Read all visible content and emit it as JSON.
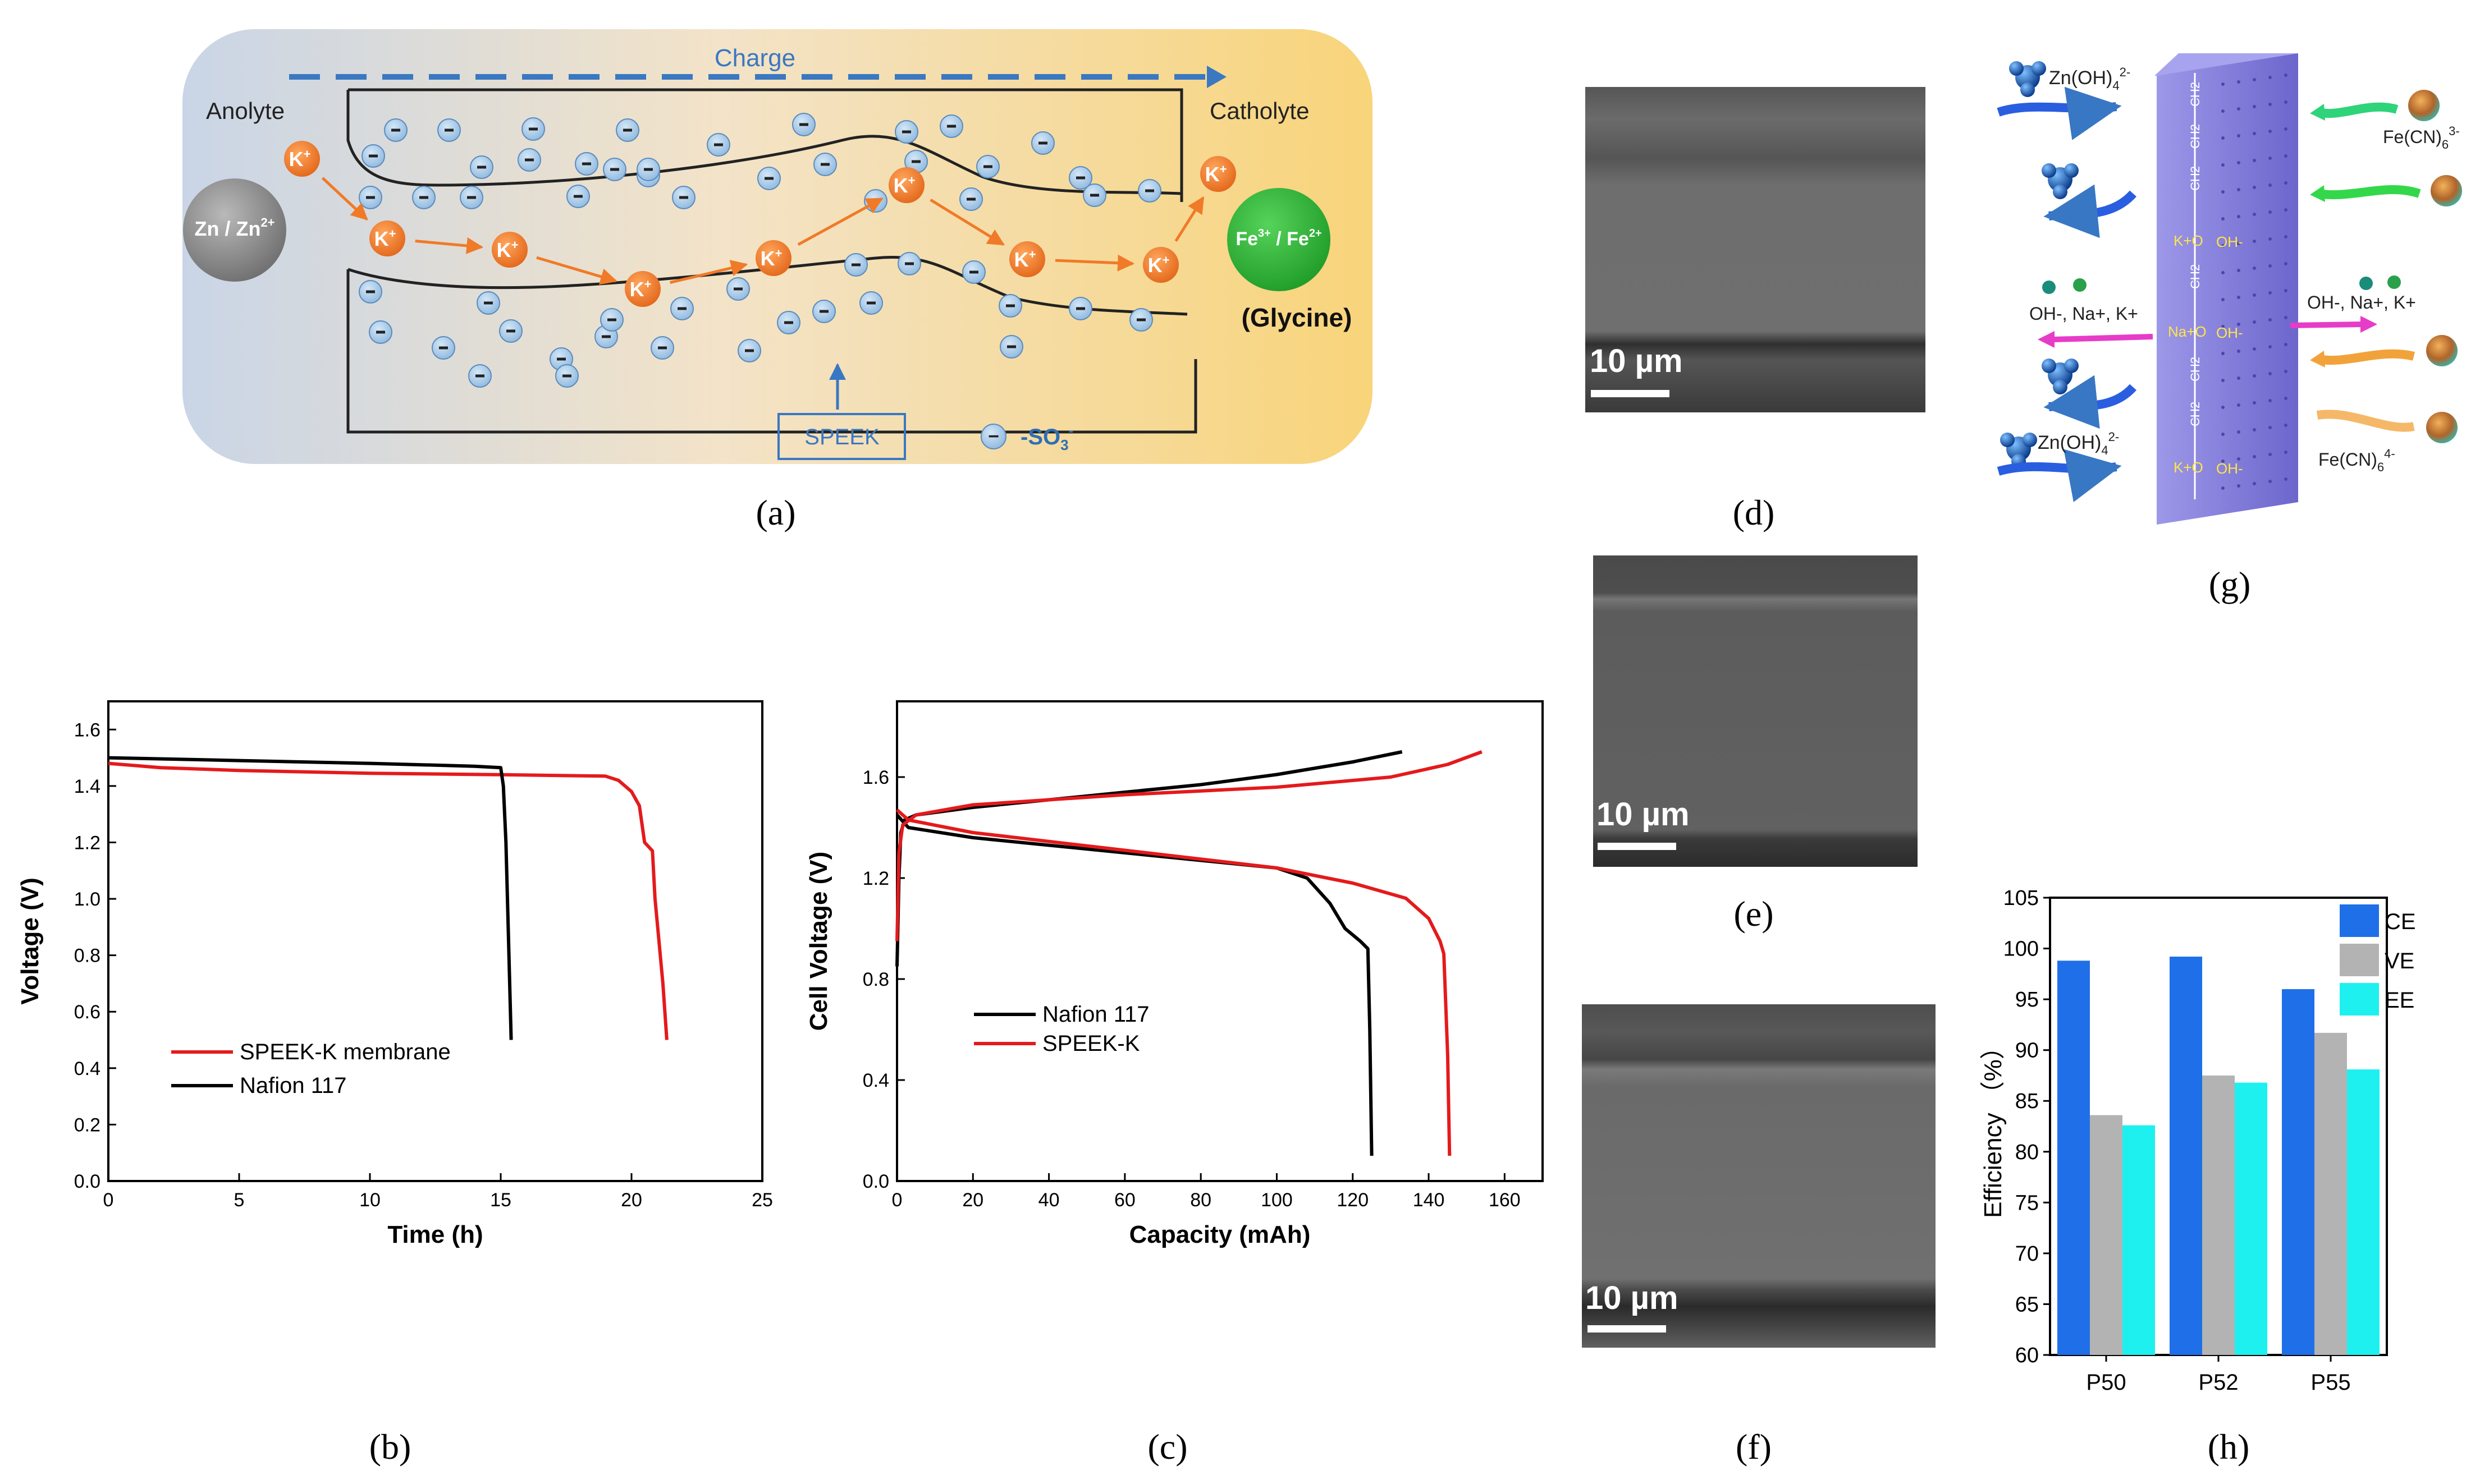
{
  "panels": {
    "a": "(a)",
    "b": "(b)",
    "c": "(c)",
    "d": "(d)",
    "e": "(e)",
    "f": "(f)",
    "g": "(g)",
    "h": "(h)"
  },
  "schematic": {
    "charge": "Charge",
    "anolyte": "Anolyte",
    "catholyte": "Catholyte",
    "zn": "Zn / Zn",
    "zn_sup": "2+",
    "fe": "Fe",
    "fe_sup1": "3+",
    "fe_mid": " / Fe",
    "fe_sup2": "2+",
    "glycine": "(Glycine)",
    "k": "K",
    "k_sup": "+",
    "speek": "SPEEK",
    "so3_prefix": "-SO",
    "so3_sub": "3",
    "so3_sup": "-",
    "minus": "−"
  },
  "sem": {
    "scale_label": "10 µm"
  },
  "membrane": {
    "zn_oh4": "Zn(OH)",
    "zn_sub": "4",
    "zn_sup": "2-",
    "fecn": "Fe(CN)",
    "fecn_sub": "6",
    "fecn3_sup": "3-",
    "fecn4_sup": "4-",
    "ions_left": "OH-, Na+, K+",
    "ions_right": "OH-, Na+, K+",
    "k_o": "K+O",
    "na_o": "Na+O",
    "oh": "OH-",
    "chain_ch2": "CH2"
  },
  "colors": {
    "red_series": "#e41a1c",
    "black_series": "#000000",
    "ce": "#1f6fe8",
    "ve": "#b3b3b3",
    "ee": "#1ef0f0",
    "k_ion": "#f07a28",
    "so3": "#a9cbe9",
    "membrane": "#7e78d8"
  },
  "chart_data": [
    {
      "id": "b",
      "type": "line",
      "xlabel": "Time (h)",
      "ylabel": "Voltage (V)",
      "xlim": [
        0,
        25
      ],
      "ylim": [
        0,
        1.7
      ],
      "xticks": [
        0,
        5,
        10,
        15,
        20,
        25
      ],
      "yticks": [
        0.0,
        0.2,
        0.4,
        0.6,
        0.8,
        1.0,
        1.2,
        1.4,
        1.6
      ],
      "legend": [
        "SPEEK-K membrane",
        "Nafion 117"
      ],
      "series": [
        {
          "name": "SPEEK-K membrane",
          "color": "#e41a1c",
          "x": [
            0,
            2,
            5,
            10,
            15,
            19,
            19.5,
            20.0,
            20.3,
            20.5,
            20.6,
            20.8,
            20.9,
            21.0,
            21.2,
            21.35
          ],
          "y": [
            1.48,
            1.465,
            1.455,
            1.445,
            1.44,
            1.435,
            1.42,
            1.38,
            1.33,
            1.2,
            1.19,
            1.17,
            1.0,
            0.9,
            0.7,
            0.5
          ]
        },
        {
          "name": "Nafion 117",
          "color": "#000000",
          "x": [
            0,
            5,
            10,
            14,
            15.0,
            15.1,
            15.2,
            15.3,
            15.4
          ],
          "y": [
            1.5,
            1.49,
            1.48,
            1.47,
            1.465,
            1.4,
            1.2,
            0.85,
            0.5
          ]
        }
      ]
    },
    {
      "id": "c",
      "type": "line",
      "xlabel": "Capacity (mAh)",
      "ylabel": "Cell Voltage (V)",
      "xlim": [
        0,
        170
      ],
      "ylim": [
        0,
        1.9
      ],
      "xticks": [
        0,
        20,
        40,
        60,
        80,
        100,
        120,
        140,
        160
      ],
      "yticks": [
        0.0,
        0.4,
        0.8,
        1.2,
        1.6
      ],
      "legend": [
        "Nafion 117",
        "SPEEK-K"
      ],
      "series": [
        {
          "name": "Nafion 117 charge",
          "legend": "Nafion 117",
          "color": "#000000",
          "x": [
            0,
            0.5,
            1.0,
            2,
            5,
            20,
            40,
            60,
            80,
            100,
            120,
            133
          ],
          "y": [
            0.85,
            1.2,
            1.38,
            1.43,
            1.45,
            1.48,
            1.51,
            1.54,
            1.57,
            1.61,
            1.66,
            1.7
          ]
        },
        {
          "name": "Nafion 117 discharge",
          "legend": "",
          "color": "#000000",
          "x": [
            0,
            3,
            20,
            60,
            100,
            108,
            114,
            118,
            122,
            124,
            124.5,
            125
          ],
          "y": [
            1.45,
            1.4,
            1.36,
            1.3,
            1.24,
            1.2,
            1.1,
            1.0,
            0.95,
            0.92,
            0.6,
            0.1
          ]
        },
        {
          "name": "SPEEK-K charge",
          "legend": "SPEEK-K",
          "color": "#e41a1c",
          "x": [
            0,
            0.5,
            1.5,
            5,
            20,
            60,
            100,
            130,
            145,
            154
          ],
          "y": [
            0.95,
            1.3,
            1.41,
            1.45,
            1.49,
            1.53,
            1.56,
            1.6,
            1.65,
            1.7
          ]
        },
        {
          "name": "SPEEK-K discharge",
          "legend": "",
          "color": "#e41a1c",
          "x": [
            0,
            3,
            20,
            60,
            100,
            120,
            134,
            140,
            143,
            144,
            145,
            145.5
          ],
          "y": [
            1.47,
            1.43,
            1.38,
            1.31,
            1.24,
            1.18,
            1.12,
            1.04,
            0.95,
            0.9,
            0.5,
            0.1
          ]
        }
      ]
    },
    {
      "id": "h",
      "type": "bar",
      "ylabel": "Efficiency （%）",
      "categories": [
        "P50",
        "P52",
        "P55"
      ],
      "ylim": [
        60,
        105
      ],
      "yticks": [
        60,
        65,
        70,
        75,
        80,
        85,
        90,
        95,
        100,
        105
      ],
      "legend": [
        "CE",
        "VE",
        "EE"
      ],
      "series": [
        {
          "name": "CE",
          "color": "#1f6fe8",
          "values": [
            98.8,
            99.2,
            96.0
          ]
        },
        {
          "name": "VE",
          "color": "#b3b3b3",
          "values": [
            83.6,
            87.5,
            91.7
          ]
        },
        {
          "name": "EE",
          "color": "#1ef0f0",
          "values": [
            82.6,
            86.8,
            88.1
          ]
        }
      ]
    }
  ]
}
